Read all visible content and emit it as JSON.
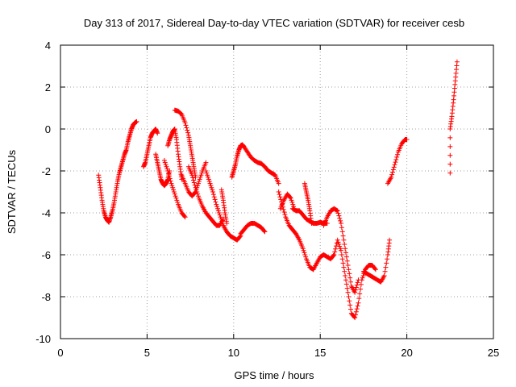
{
  "chart_data": {
    "type": "scatter",
    "title": "Day 313 of 2017, Sidereal Day-to-day VTEC variation (SDTVAR) for receiver cesb",
    "xlabel": "GPS time / hours",
    "ylabel": "SDTVAR / TECUs",
    "xlim": [
      0,
      25
    ],
    "ylim": [
      -10,
      4
    ],
    "xticks": [
      0,
      5,
      10,
      15,
      20,
      25
    ],
    "yticks": [
      -10,
      -8,
      -6,
      -4,
      -2,
      0,
      2,
      4
    ],
    "xtick_labels": [
      "0",
      "5",
      "10",
      "15",
      "20",
      "25"
    ],
    "ytick_labels": [
      "-10",
      "-8",
      "-6",
      "-4",
      "-2",
      "0",
      "2",
      "4"
    ],
    "grid": true,
    "marker": "+",
    "color": "#ff0000",
    "series": [
      {
        "name": "t1",
        "x": [
          2.2,
          2.3,
          2.4,
          2.5,
          2.6,
          2.7,
          2.8,
          2.9,
          3.0,
          3.1,
          3.2,
          3.3,
          3.4,
          3.5,
          3.6,
          3.7,
          3.8,
          3.9,
          4.0,
          4.1,
          4.2,
          4.3,
          4.4
        ],
        "y": [
          -2.2,
          -2.8,
          -3.4,
          -3.9,
          -4.2,
          -4.35,
          -4.45,
          -4.2,
          -3.9,
          -3.5,
          -3.0,
          -2.5,
          -2.1,
          -1.8,
          -1.5,
          -1.2,
          -1.0,
          -0.6,
          -0.3,
          0.0,
          0.2,
          0.3,
          0.35
        ]
      },
      {
        "name": "t2",
        "x": [
          4.8,
          4.9,
          5.0,
          5.1,
          5.2,
          5.3,
          5.4,
          5.5,
          5.6
        ],
        "y": [
          -1.8,
          -1.6,
          -1.2,
          -0.8,
          -0.4,
          -0.2,
          -0.1,
          0.0,
          -0.2
        ]
      },
      {
        "name": "t3",
        "x": [
          5.5,
          5.6,
          5.7,
          5.8,
          5.9,
          6.0,
          6.1,
          6.2,
          6.3
        ],
        "y": [
          -1.2,
          -1.6,
          -2.0,
          -2.4,
          -2.6,
          -2.7,
          -2.6,
          -2.4,
          -2.0
        ]
      },
      {
        "name": "t4",
        "x": [
          6.2,
          6.3,
          6.4,
          6.5,
          6.6,
          6.7,
          6.8,
          6.9,
          7.0
        ],
        "y": [
          -0.8,
          -0.5,
          -0.3,
          -0.1,
          0.0,
          -0.5,
          -1.2,
          -1.8,
          -2.4
        ]
      },
      {
        "name": "t5",
        "x": [
          6.6,
          6.8,
          7.0,
          7.2,
          7.4,
          7.5,
          7.6,
          7.7,
          7.8
        ],
        "y": [
          0.9,
          0.85,
          0.7,
          0.3,
          -0.3,
          -0.8,
          -1.3,
          -1.8,
          -2.3
        ]
      },
      {
        "name": "t6",
        "x": [
          6.0,
          6.2,
          6.4,
          6.6,
          6.8,
          7.0,
          7.2
        ],
        "y": [
          -1.5,
          -2.0,
          -2.6,
          -3.1,
          -3.6,
          -4.0,
          -4.2
        ]
      },
      {
        "name": "t7",
        "x": [
          7.0,
          7.2,
          7.4,
          7.6,
          7.8,
          8.0,
          8.2,
          8.4
        ],
        "y": [
          -2.2,
          -2.6,
          -3.0,
          -3.2,
          -3.0,
          -2.5,
          -2.0,
          -1.6
        ]
      },
      {
        "name": "t8",
        "x": [
          7.4,
          7.6,
          7.8,
          8.0,
          8.2,
          8.4,
          8.6,
          8.8,
          9.0,
          9.2,
          9.4
        ],
        "y": [
          -1.8,
          -2.2,
          -2.8,
          -3.3,
          -3.7,
          -4.0,
          -4.2,
          -4.4,
          -4.6,
          -4.6,
          -4.3
        ]
      },
      {
        "name": "t9",
        "x": [
          8.4,
          8.6,
          8.8,
          9.0,
          9.2,
          9.4,
          9.6,
          9.8,
          10.0,
          10.2,
          10.4
        ],
        "y": [
          -2.0,
          -2.5,
          -3.0,
          -3.6,
          -4.1,
          -4.6,
          -4.9,
          -5.1,
          -5.2,
          -5.3,
          -5.1
        ]
      },
      {
        "name": "t10",
        "x": [
          9.3,
          9.4,
          9.5,
          9.6
        ],
        "y": [
          -2.9,
          -3.4,
          -4.0,
          -4.5
        ]
      },
      {
        "name": "t11",
        "x": [
          10.4,
          10.6,
          10.8,
          11.0,
          11.2,
          11.4,
          11.6,
          11.8
        ],
        "y": [
          -5.0,
          -4.8,
          -4.6,
          -4.5,
          -4.5,
          -4.6,
          -4.7,
          -4.9
        ]
      },
      {
        "name": "t12",
        "x": [
          9.9,
          10.0,
          10.1,
          10.2,
          10.3,
          10.4,
          10.5,
          10.6,
          10.8,
          11.0,
          11.2,
          11.4,
          11.6,
          11.8,
          12.0,
          12.2,
          12.4,
          12.6
        ],
        "y": [
          -2.3,
          -2.0,
          -1.7,
          -1.3,
          -1.0,
          -0.8,
          -0.75,
          -0.85,
          -1.1,
          -1.35,
          -1.5,
          -1.6,
          -1.65,
          -1.8,
          -2.0,
          -2.1,
          -2.2,
          -2.6
        ]
      },
      {
        "name": "t13",
        "x": [
          12.6,
          12.8,
          13.0,
          13.2,
          13.4,
          13.6,
          13.8,
          14.0,
          14.2,
          14.4,
          14.6
        ],
        "y": [
          -3.0,
          -3.6,
          -4.2,
          -4.6,
          -4.8,
          -5.0,
          -5.3,
          -5.7,
          -6.2,
          -6.6,
          -6.7
        ]
      },
      {
        "name": "t14",
        "x": [
          12.7,
          12.9,
          13.1,
          13.3,
          13.5
        ],
        "y": [
          -3.8,
          -3.4,
          -3.1,
          -3.3,
          -3.8
        ]
      },
      {
        "name": "t15",
        "x": [
          13.4,
          13.6,
          13.8,
          14.0,
          14.2,
          14.4,
          14.6,
          14.8,
          15.0,
          15.2,
          15.4
        ],
        "y": [
          -3.8,
          -3.9,
          -3.9,
          -4.1,
          -4.3,
          -4.4,
          -4.5,
          -4.5,
          -4.45,
          -4.5,
          -4.5
        ]
      },
      {
        "name": "t16",
        "x": [
          14.1,
          14.2,
          14.3,
          14.4,
          14.5
        ],
        "y": [
          -2.6,
          -3.0,
          -3.4,
          -3.9,
          -4.5
        ]
      },
      {
        "name": "t17",
        "x": [
          14.6,
          14.8,
          15.0,
          15.2,
          15.4,
          15.6,
          15.8,
          16.0,
          16.2,
          16.4,
          16.6,
          16.8,
          17.0,
          17.2,
          17.4,
          17.6,
          17.8,
          18.0,
          18.2
        ],
        "y": [
          -6.7,
          -6.4,
          -6.1,
          -6.0,
          -6.1,
          -6.2,
          -6.0,
          -5.3,
          -5.8,
          -6.8,
          -7.8,
          -8.8,
          -9.0,
          -8.3,
          -7.2,
          -6.7,
          -6.5,
          -6.5,
          -6.7
        ]
      },
      {
        "name": "t18",
        "x": [
          15.2,
          15.4,
          15.6,
          15.8,
          16.0,
          16.2,
          16.4,
          16.6,
          16.8,
          17.0,
          17.2
        ],
        "y": [
          -4.6,
          -4.2,
          -3.9,
          -3.8,
          -3.9,
          -4.5,
          -5.5,
          -6.5,
          -7.5,
          -7.8,
          -7.2
        ]
      },
      {
        "name": "t19",
        "x": [
          17.5,
          17.7,
          17.9,
          18.1,
          18.3,
          18.5,
          18.7,
          18.9,
          19.0
        ],
        "y": [
          -6.8,
          -6.9,
          -7.0,
          -7.1,
          -7.2,
          -7.3,
          -7.0,
          -6.0,
          -5.3
        ]
      },
      {
        "name": "t20",
        "x": [
          18.9,
          19.1,
          19.3,
          19.5,
          19.7,
          19.9,
          20.0
        ],
        "y": [
          -2.6,
          -2.3,
          -1.7,
          -1.1,
          -0.7,
          -0.5,
          -0.5
        ]
      },
      {
        "name": "t21",
        "x": [
          22.5,
          22.5,
          22.6,
          22.7,
          22.8,
          22.9
        ],
        "y": [
          -2.1,
          0.0,
          0.6,
          1.4,
          2.3,
          3.2
        ]
      }
    ]
  }
}
